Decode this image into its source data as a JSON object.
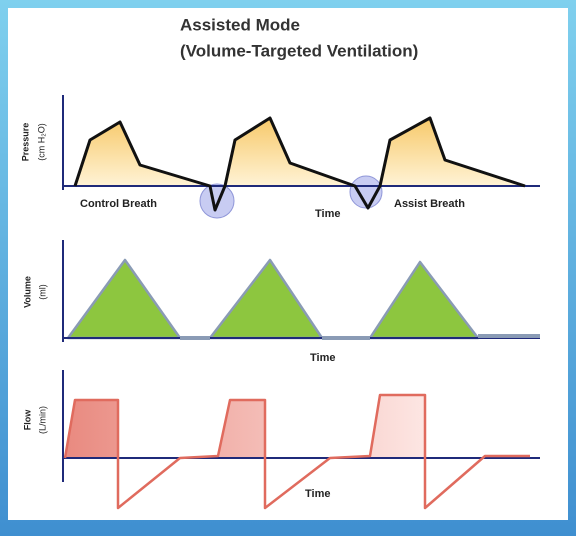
{
  "header": {
    "title": "Assisted Mode",
    "subtitle": "(Volume-Targeted Ventilation)"
  },
  "panels": [
    {
      "axis_label": "Pressure",
      "axis_unit": "(cm H₂O)",
      "time_label": "Time",
      "annotations": [
        "Control Breath",
        "Assist Breath"
      ]
    },
    {
      "axis_label": "Volume",
      "axis_unit": "(ml)",
      "time_label": "Time"
    },
    {
      "axis_label": "Flow",
      "axis_unit": "(L/min)",
      "time_label": "Time"
    }
  ]
}
